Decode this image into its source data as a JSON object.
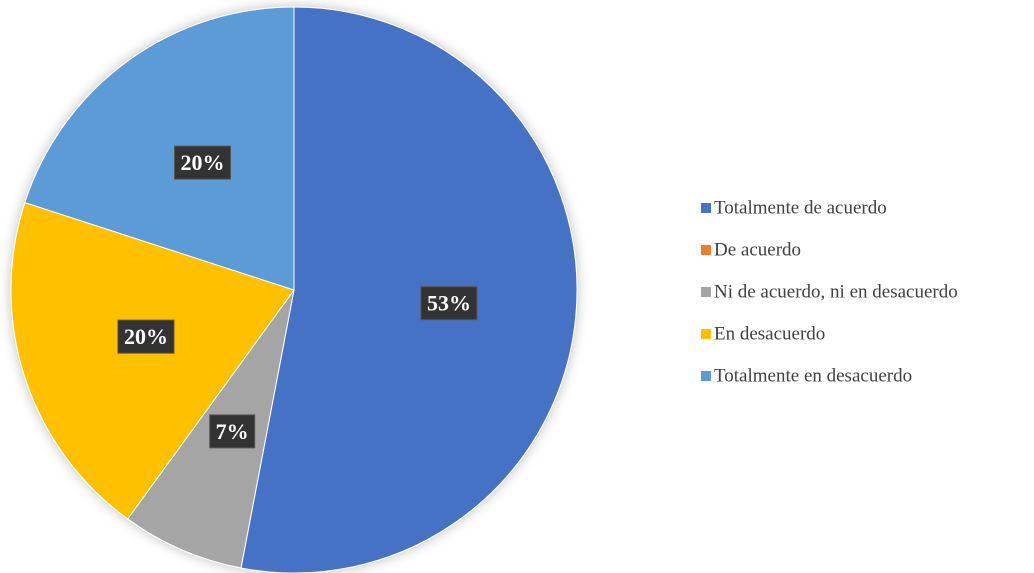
{
  "chart_data": {
    "type": "pie",
    "categories": [
      "Totalmente de acuerdo",
      "De acuerdo",
      "Ni de acuerdo, ni en desacuerdo",
      "En desacuerdo",
      "Totalmente en desacuerdo"
    ],
    "values": [
      53,
      0,
      7,
      20,
      20
    ],
    "value_labels": [
      "53%",
      null,
      "7%",
      "20%",
      "20%"
    ],
    "colors": [
      "#4472c4",
      "#ed7d31",
      "#a5a5a5",
      "#ffc000",
      "#5b9bd5"
    ],
    "legend": "right"
  }
}
